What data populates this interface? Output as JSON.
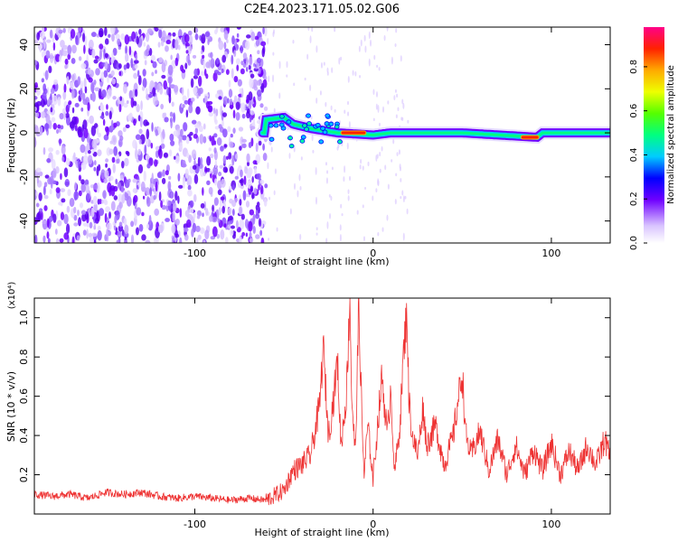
{
  "title": "C2E4.2023.171.05.02.G06",
  "colors": {
    "snr_line": "#ee3333",
    "background": "#ffffff"
  },
  "chart_data": [
    {
      "type": "heatmap",
      "xlabel": "Height of straight line (km)",
      "ylabel": "Frequency (Hz)",
      "xlim": [
        -190,
        133
      ],
      "ylim": [
        -50,
        48
      ],
      "xticks": [
        {
          "value": -100,
          "label": "-100"
        },
        {
          "value": 0,
          "label": "0"
        },
        {
          "value": 100,
          "label": "100"
        }
      ],
      "yticks": [
        {
          "value": -40,
          "label": "-40"
        },
        {
          "value": -20,
          "label": "-20"
        },
        {
          "value": 0,
          "label": "0"
        },
        {
          "value": 20,
          "label": "20"
        },
        {
          "value": 40,
          "label": "40"
        }
      ],
      "colorbar": {
        "label": "Normalized spectral amplitude",
        "range": [
          0,
          0.98
        ],
        "ticks": [
          {
            "value": 0.0,
            "label": "0.0"
          },
          {
            "value": 0.2,
            "label": "0.2"
          },
          {
            "value": 0.4,
            "label": "0.4"
          },
          {
            "value": 0.6,
            "label": "0.6"
          },
          {
            "value": 0.8,
            "label": "0.8"
          }
        ]
      },
      "features": {
        "noise_region_x": [
          -190,
          -60
        ],
        "carrier": [
          {
            "x": -60,
            "y": 6
          },
          {
            "x": -50,
            "y": 7
          },
          {
            "x": -45,
            "y": 4
          },
          {
            "x": -35,
            "y": 2
          },
          {
            "x": -20,
            "y": 0
          },
          {
            "x": 0,
            "y": -1
          },
          {
            "x": 10,
            "y": 0
          },
          {
            "x": 50,
            "y": 0
          },
          {
            "x": 92,
            "y": -2
          },
          {
            "x": 95,
            "y": 0
          },
          {
            "x": 133,
            "y": 0
          }
        ],
        "hot_segments": [
          {
            "x0": -17,
            "x1": -5,
            "y": 0
          },
          {
            "x0": 84,
            "x1": 92,
            "y": -2
          }
        ]
      }
    },
    {
      "type": "line",
      "xlabel": "Height of straight line (km)",
      "ylabel": "SNR (10 * v/v)",
      "y_multiplier_label": "(x10⁴)",
      "xlim": [
        -190,
        133
      ],
      "ylim": [
        0,
        1.1
      ],
      "xticks": [
        {
          "value": -100,
          "label": "-100"
        },
        {
          "value": 0,
          "label": "0"
        },
        {
          "value": 100,
          "label": "100"
        }
      ],
      "yticks": [
        {
          "value": 0.2,
          "label": "0.2"
        },
        {
          "value": 0.4,
          "label": "0.4"
        },
        {
          "value": 0.6,
          "label": "0.6"
        },
        {
          "value": 0.8,
          "label": "0.8"
        },
        {
          "value": 1.0,
          "label": "1.0"
        }
      ],
      "x": [
        -190,
        -180,
        -170,
        -160,
        -150,
        -140,
        -130,
        -120,
        -110,
        -100,
        -90,
        -80,
        -70,
        -60,
        -50,
        -45,
        -40,
        -35,
        -30,
        -28,
        -25,
        -22,
        -20,
        -18,
        -15,
        -13,
        -12,
        -10,
        -8,
        -6,
        -5,
        -3,
        0,
        3,
        5,
        8,
        10,
        12,
        15,
        17,
        19,
        20,
        22,
        25,
        28,
        30,
        35,
        40,
        45,
        48,
        50,
        52,
        55,
        60,
        65,
        70,
        75,
        80,
        85,
        90,
        95,
        100,
        105,
        110,
        115,
        120,
        125,
        130,
        133
      ],
      "y": [
        0.1,
        0.09,
        0.1,
        0.08,
        0.11,
        0.1,
        0.11,
        0.09,
        0.08,
        0.09,
        0.08,
        0.07,
        0.08,
        0.07,
        0.12,
        0.22,
        0.25,
        0.3,
        0.55,
        0.85,
        0.4,
        0.6,
        0.78,
        0.35,
        0.6,
        1.1,
        0.6,
        0.3,
        1.05,
        0.4,
        0.2,
        0.45,
        0.18,
        0.5,
        0.7,
        0.4,
        0.65,
        0.2,
        0.45,
        0.8,
        1.05,
        0.6,
        0.4,
        0.3,
        0.55,
        0.35,
        0.45,
        0.25,
        0.4,
        0.6,
        0.72,
        0.4,
        0.3,
        0.42,
        0.22,
        0.38,
        0.2,
        0.35,
        0.2,
        0.33,
        0.22,
        0.36,
        0.2,
        0.32,
        0.22,
        0.35,
        0.25,
        0.38,
        0.28
      ]
    }
  ]
}
